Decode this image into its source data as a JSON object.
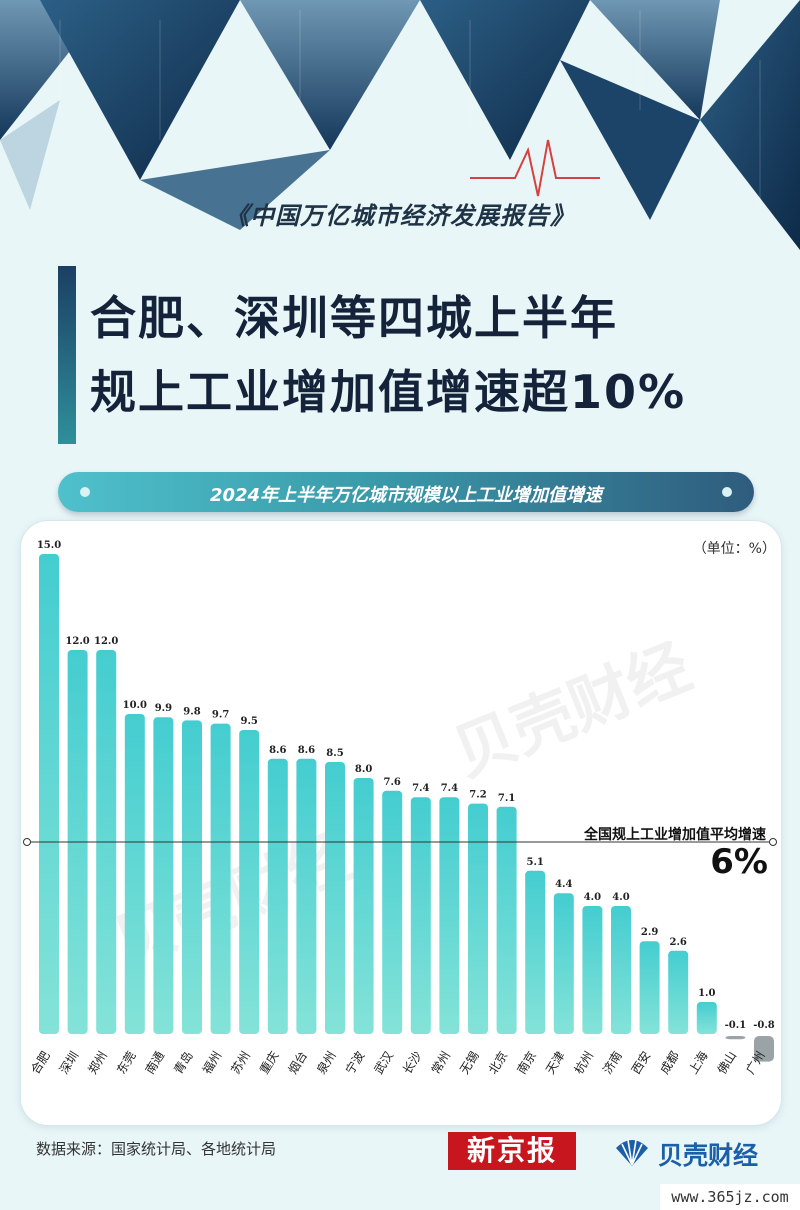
{
  "report_title": "《中国万亿城市经济发展报告》",
  "headline": {
    "line1": "合肥、深圳等四城上半年",
    "line2": "规上工业增加值增速超10%"
  },
  "unit": "（单位：%）",
  "average": {
    "label": "全国规上工业增加值平均增速",
    "value": 6,
    "display": "6%"
  },
  "watermark": "贝壳财经",
  "source": "数据来源：国家统计局、各地统计局",
  "logos": {
    "xinjingbao": "新京报",
    "beike": "贝壳财经"
  },
  "site_mark": "www.365jz.com",
  "colors": {
    "bar_top": "#44cdd0",
    "bar_bottom": "#84e3d8",
    "bar_negative": "#9aa3a6",
    "headline_accent": "#1b3f63"
  },
  "chart_data": {
    "type": "bar",
    "title": "2024年上半年万亿城市规模以上工业增加值增速",
    "categories": [
      "合肥",
      "深圳",
      "郑州",
      "东莞",
      "南通",
      "青岛",
      "福州",
      "苏州",
      "重庆",
      "烟台",
      "泉州",
      "宁波",
      "武汉",
      "长沙",
      "常州",
      "无锡",
      "北京",
      "南京",
      "天津",
      "杭州",
      "济南",
      "西安",
      "成都",
      "上海",
      "佛山",
      "广州"
    ],
    "values": [
      15.0,
      12.0,
      12.0,
      10.0,
      9.9,
      9.8,
      9.7,
      9.5,
      8.6,
      8.6,
      8.5,
      8.0,
      7.6,
      7.4,
      7.4,
      7.2,
      7.1,
      5.1,
      4.4,
      4.0,
      4.0,
      2.9,
      2.6,
      1.0,
      -0.1,
      -0.8
    ],
    "value_labels": [
      "15.0",
      "12.0",
      "12.0",
      "10.0",
      "9.9",
      "9.8",
      "9.7",
      "9.5",
      "8.6",
      "8.6",
      "8.5",
      "8.0",
      "7.6",
      "7.4",
      "7.4",
      "7.2",
      "7.1",
      "5.1",
      "4.4",
      "4.0",
      "4.0",
      "2.9",
      "2.6",
      "1.0",
      "-0.1",
      "-0.8"
    ],
    "reference_line": 6,
    "ylim": [
      -0.8,
      15
    ],
    "grid": false,
    "legend": "none"
  }
}
